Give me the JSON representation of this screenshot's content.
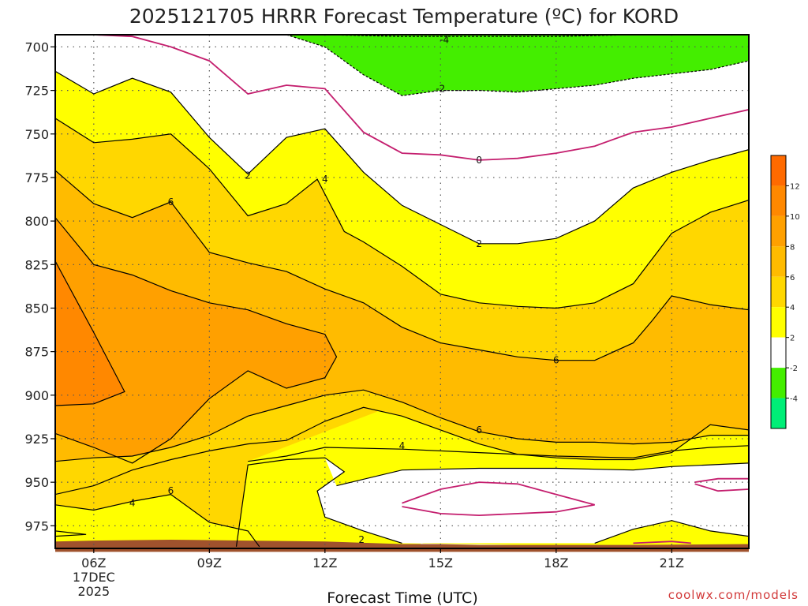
{
  "chart_data": {
    "type": "contour",
    "title": "2025121705 HRRR Forecast Temperature (ºC) for KORD",
    "xlabel": "Forecast Time (UTC)",
    "ylabel": "",
    "credit": "coolwx.com/models",
    "x_axis": {
      "unit": "hour UTC",
      "range": [
        5,
        23
      ],
      "ticks": [
        {
          "value": 6,
          "label": "06Z",
          "sub": [
            "17DEC",
            "2025"
          ]
        },
        {
          "value": 9,
          "label": "09Z"
        },
        {
          "value": 12,
          "label": "12Z"
        },
        {
          "value": 15,
          "label": "15Z"
        },
        {
          "value": 18,
          "label": "18Z"
        },
        {
          "value": 21,
          "label": "21Z"
        }
      ]
    },
    "y_axis": {
      "unit": "hPa",
      "range": [
        988,
        693
      ],
      "ticks": [
        700,
        725,
        750,
        775,
        800,
        825,
        850,
        875,
        900,
        925,
        950,
        975
      ],
      "tick_labels": [
        "700",
        "725",
        "750",
        "775",
        "800",
        "825",
        "850",
        "875",
        "900",
        "925",
        "950",
        "975"
      ]
    },
    "grid": true,
    "surface_color": "#a0522d",
    "surface_pressure": [
      [
        5,
        984
      ],
      [
        6,
        983.5
      ],
      [
        8,
        983
      ],
      [
        10,
        983.5
      ],
      [
        12,
        984
      ],
      [
        14,
        985.5
      ],
      [
        15,
        985.5
      ],
      [
        16,
        986
      ],
      [
        18,
        986
      ],
      [
        20,
        986
      ],
      [
        23,
        985.5
      ]
    ],
    "fill_levels": [
      {
        "range": [
          -6,
          -4
        ],
        "color": "#00ee77"
      },
      {
        "range": [
          -4,
          -2
        ],
        "color": "#44ee00"
      },
      {
        "range": [
          -2,
          2
        ],
        "color": "#ffffff"
      },
      {
        "range": [
          2,
          4
        ],
        "color": "#ffff00"
      },
      {
        "range": [
          4,
          6
        ],
        "color": "#ffd700"
      },
      {
        "range": [
          6,
          8
        ],
        "color": "#ffbb00"
      },
      {
        "range": [
          8,
          10
        ],
        "color": "#ffa000"
      },
      {
        "range": [
          10,
          12
        ],
        "color": "#ff8800"
      },
      {
        "range": [
          12,
          14
        ],
        "color": "#ff6a00"
      }
    ],
    "colorbar": {
      "ticks": [
        "12",
        "10",
        "8",
        "6",
        "4",
        "2",
        "-2",
        "-4"
      ],
      "bands": [
        "#ff6a00",
        "#ff8800",
        "#ffa000",
        "#ffbb00",
        "#ffd700",
        "#ffff00",
        "#ffffff",
        "#44ee00",
        "#00ee77"
      ]
    },
    "contours": [
      {
        "level": -4,
        "style": "dashed",
        "color": "#000000",
        "points": [
          [
            11,
            693
          ],
          [
            12,
            693
          ],
          [
            14,
            694
          ],
          [
            16,
            694
          ],
          [
            18,
            694
          ],
          [
            20,
            693
          ],
          [
            21,
            693
          ]
        ]
      },
      {
        "level": -2,
        "style": "dashed",
        "color": "#000000",
        "points": [
          [
            11,
            693
          ],
          [
            12,
            700
          ],
          [
            13,
            716
          ],
          [
            14,
            728
          ],
          [
            15,
            725
          ],
          [
            16,
            725
          ],
          [
            17,
            726
          ],
          [
            18,
            724
          ],
          [
            19,
            722
          ],
          [
            20,
            718
          ],
          [
            22,
            713
          ],
          [
            23,
            708
          ]
        ]
      },
      {
        "level": 0,
        "style": "solid",
        "color": "#c41e6e",
        "points": [
          [
            6,
            693
          ],
          [
            7,
            694
          ],
          [
            8,
            700
          ],
          [
            9,
            708
          ],
          [
            10,
            727
          ],
          [
            11,
            722
          ],
          [
            12,
            724
          ],
          [
            13,
            749
          ],
          [
            14,
            761
          ],
          [
            15,
            762
          ],
          [
            16,
            765
          ],
          [
            17,
            764
          ],
          [
            18,
            761
          ],
          [
            19,
            757
          ],
          [
            20,
            749
          ],
          [
            21,
            746
          ],
          [
            22,
            741
          ],
          [
            23,
            736
          ]
        ]
      },
      {
        "level": 2,
        "style": "solid",
        "color": "#000000",
        "points": [
          [
            5,
            714
          ],
          [
            6,
            727
          ],
          [
            7,
            718
          ],
          [
            8,
            726
          ],
          [
            9,
            752
          ],
          [
            10,
            773
          ],
          [
            11,
            752
          ],
          [
            12,
            747
          ],
          [
            13,
            772
          ],
          [
            14,
            791
          ],
          [
            15,
            802
          ],
          [
            16,
            813
          ],
          [
            17,
            813
          ],
          [
            18,
            810
          ],
          [
            19,
            800
          ],
          [
            20,
            781
          ],
          [
            21,
            772
          ],
          [
            22,
            765
          ],
          [
            23,
            759
          ]
        ]
      },
      {
        "level": 4,
        "style": "solid",
        "color": "#000000",
        "points": [
          [
            5,
            741
          ],
          [
            6,
            755
          ],
          [
            7,
            753
          ],
          [
            8,
            750
          ],
          [
            9,
            770
          ],
          [
            10,
            797
          ],
          [
            11,
            790
          ],
          [
            11.8,
            776
          ],
          [
            12.5,
            806
          ],
          [
            13,
            812
          ],
          [
            14,
            826
          ],
          [
            15,
            842
          ],
          [
            16,
            847
          ],
          [
            17,
            849
          ],
          [
            18,
            850
          ],
          [
            19,
            847
          ],
          [
            20,
            836
          ],
          [
            21,
            807
          ],
          [
            22,
            795
          ],
          [
            23,
            788
          ]
        ]
      },
      {
        "level": 6,
        "style": "solid",
        "color": "#000000",
        "points": [
          [
            5,
            771
          ],
          [
            6,
            790
          ],
          [
            7,
            798
          ],
          [
            8,
            789
          ],
          [
            9,
            818
          ],
          [
            10,
            824
          ],
          [
            11,
            829
          ],
          [
            12,
            839
          ],
          [
            13,
            847
          ],
          [
            14,
            861
          ],
          [
            15,
            870
          ],
          [
            16,
            874
          ],
          [
            17,
            878
          ],
          [
            18,
            880
          ],
          [
            19,
            880
          ],
          [
            20,
            870
          ],
          [
            20.5,
            857
          ],
          [
            21,
            843
          ],
          [
            22,
            848
          ],
          [
            23,
            851
          ]
        ]
      },
      {
        "level": 6,
        "style": "solid",
        "color": "#000000",
        "points": [
          [
            5,
            957
          ],
          [
            6,
            952
          ],
          [
            7,
            943
          ],
          [
            8,
            937
          ],
          [
            9,
            932
          ],
          [
            10,
            928
          ],
          [
            11,
            926
          ],
          [
            12,
            915
          ],
          [
            13,
            907
          ],
          [
            14,
            912
          ],
          [
            15,
            920
          ],
          [
            16,
            928
          ],
          [
            17,
            934
          ],
          [
            18,
            936
          ],
          [
            19,
            937
          ],
          [
            20,
            937
          ],
          [
            21,
            933
          ],
          [
            21.5,
            925
          ],
          [
            22,
            917
          ],
          [
            23,
            920
          ]
        ]
      },
      {
        "level": 8,
        "style": "solid",
        "color": "#000000",
        "points": [
          [
            5,
            798
          ],
          [
            6,
            825
          ],
          [
            7,
            831
          ],
          [
            8,
            840
          ],
          [
            9,
            847
          ],
          [
            10,
            851
          ],
          [
            11,
            859
          ],
          [
            12,
            865
          ],
          [
            12.3,
            878
          ],
          [
            12,
            890
          ],
          [
            11,
            896
          ],
          [
            10,
            886
          ],
          [
            9,
            902
          ],
          [
            8,
            925
          ],
          [
            7,
            939
          ],
          [
            6,
            930
          ],
          [
            5,
            922
          ]
        ]
      },
      {
        "level": 10,
        "style": "solid",
        "color": "#000000",
        "points": [
          [
            5,
            823
          ],
          [
            6,
            864
          ],
          [
            6.8,
            898
          ],
          [
            6,
            905
          ],
          [
            5,
            906
          ]
        ]
      },
      {
        "level": 4,
        "style": "solid",
        "color": "#000000",
        "points": [
          [
            5,
            963
          ],
          [
            6,
            966
          ],
          [
            7,
            961
          ],
          [
            8,
            957
          ],
          [
            9,
            973
          ],
          [
            10,
            978
          ],
          [
            10.3,
            987
          ]
        ]
      },
      {
        "level": 4,
        "style": "solid",
        "color": "#000000",
        "points": [
          [
            5,
            978
          ],
          [
            5.8,
            980
          ],
          [
            5,
            981
          ]
        ]
      },
      {
        "level": 4,
        "style": "solid",
        "color": "#000000",
        "points": [
          [
            10,
            938
          ],
          [
            11,
            935
          ],
          [
            12,
            930
          ],
          [
            14,
            931
          ],
          [
            16,
            933
          ],
          [
            18,
            935
          ],
          [
            20,
            936
          ],
          [
            21,
            932
          ],
          [
            22,
            930
          ],
          [
            23,
            929
          ]
        ]
      },
      {
        "level": 4,
        "style": "solid",
        "color": "#000000",
        "points": [
          [
            5,
            938
          ],
          [
            6,
            936
          ],
          [
            7,
            935
          ],
          [
            8,
            930
          ],
          [
            9,
            923
          ],
          [
            10,
            912
          ],
          [
            11,
            906
          ],
          [
            12,
            900
          ],
          [
            13,
            897
          ],
          [
            14,
            904
          ],
          [
            15,
            913
          ],
          [
            16,
            921
          ],
          [
            17,
            925
          ],
          [
            18,
            927
          ],
          [
            19,
            927
          ],
          [
            20,
            928
          ],
          [
            21,
            927
          ],
          [
            22,
            923
          ],
          [
            23,
            923
          ]
        ]
      },
      {
        "level": 2,
        "style": "solid",
        "color": "#000000",
        "points": [
          [
            9.7,
            987
          ],
          [
            10,
            940
          ],
          [
            11,
            937
          ],
          [
            12,
            936
          ],
          [
            12.5,
            944
          ],
          [
            11.8,
            955
          ],
          [
            12,
            970
          ],
          [
            13,
            978
          ],
          [
            14,
            985
          ]
        ]
      },
      {
        "level": 2,
        "style": "solid",
        "color": "#000000",
        "points": [
          [
            12.3,
            952
          ],
          [
            14,
            943
          ],
          [
            16,
            942
          ],
          [
            18,
            942
          ],
          [
            20,
            943
          ],
          [
            21,
            941
          ],
          [
            22,
            940
          ],
          [
            23,
            939
          ]
        ]
      },
      {
        "level": 2,
        "style": "solid",
        "color": "#000000",
        "points": [
          [
            19,
            985
          ],
          [
            20,
            977
          ],
          [
            21,
            972
          ],
          [
            22,
            978
          ],
          [
            23,
            981
          ]
        ]
      },
      {
        "level": 0,
        "style": "solid",
        "color": "#c41e6e",
        "points": [
          [
            14,
            962
          ],
          [
            15,
            954
          ],
          [
            16,
            950
          ],
          [
            17,
            951
          ],
          [
            18,
            957
          ],
          [
            19,
            963
          ],
          [
            18,
            967
          ],
          [
            16,
            969
          ],
          [
            15,
            968
          ],
          [
            14,
            964
          ]
        ]
      },
      {
        "level": 0,
        "style": "solid",
        "color": "#c41e6e",
        "points": [
          [
            21.6,
            950
          ],
          [
            22.2,
            948
          ],
          [
            23,
            948
          ],
          [
            23,
            954
          ],
          [
            22.2,
            955
          ],
          [
            21.6,
            951
          ]
        ]
      },
      {
        "level": 0,
        "style": "solid",
        "color": "#c41e6e",
        "points": [
          [
            20,
            985
          ],
          [
            21,
            984
          ],
          [
            21.5,
            985
          ]
        ]
      }
    ],
    "contour_labels": [
      {
        "text": "-4",
        "x": 15.1,
        "y": 696
      },
      {
        "text": "-2",
        "x": 15.0,
        "y": 724
      },
      {
        "text": "0",
        "x": 16.0,
        "y": 765
      },
      {
        "text": "2",
        "x": 10.0,
        "y": 774
      },
      {
        "text": "2",
        "x": 16.0,
        "y": 813
      },
      {
        "text": "2",
        "x": 12.95,
        "y": 983
      },
      {
        "text": "4",
        "x": 12.0,
        "y": 776
      },
      {
        "text": "4",
        "x": 14.0,
        "y": 929
      },
      {
        "text": "4",
        "x": 7.0,
        "y": 962
      },
      {
        "text": "6",
        "x": 8.0,
        "y": 789
      },
      {
        "text": "6",
        "x": 18.0,
        "y": 880
      },
      {
        "text": "6",
        "x": 16.0,
        "y": 920
      },
      {
        "text": "6",
        "x": 8.0,
        "y": 955
      }
    ]
  }
}
